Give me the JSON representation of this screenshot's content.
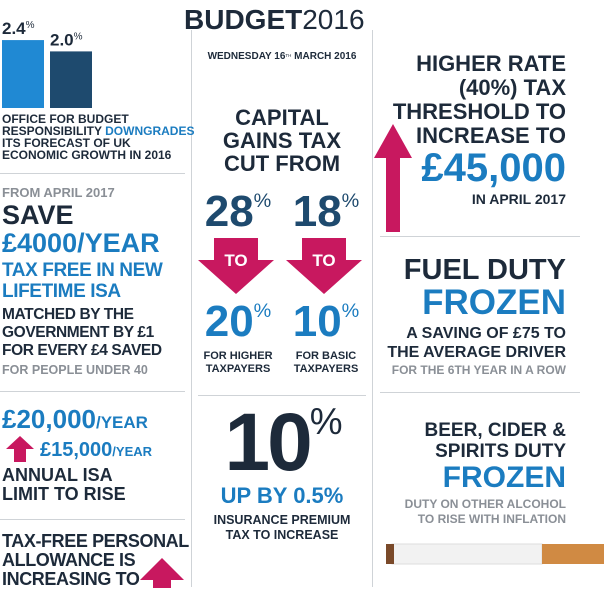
{
  "header": {
    "title": "BUDGET",
    "year": "2016",
    "date_pre": "WEDNESDAY 16",
    "date_sup": "TH",
    "date_post": " MARCH 2016"
  },
  "chart_data": {
    "type": "bar",
    "categories": [
      null,
      null
    ],
    "values": [
      2.4,
      2.0
    ],
    "value_labels": [
      "2.4",
      "2.0"
    ],
    "unit": "%",
    "colors": [
      "#2089d3",
      "#1e4a6e"
    ]
  },
  "growth": {
    "lines": [
      "OFFICE FOR BUDGET",
      "RESPONSIBILITY",
      "ITS FORECAST OF UK",
      "ECONOMIC GROWTH IN 2016"
    ],
    "highlight": "DOWNGRADES"
  },
  "isa_lifetime": {
    "kicker": "FROM APRIL 2017",
    "save": "SAVE",
    "amount": "£4000/YEAR",
    "lines": [
      "TAX FREE IN NEW",
      "LIFETIME ISA"
    ],
    "detail": [
      "MATCHED BY THE",
      "GOVERNMENT BY £1",
      "FOR EVERY £4 SAVED"
    ],
    "note": "FOR PEOPLE UNDER 40"
  },
  "isa_limit": {
    "new_amount": "£20,000",
    "new_unit": "/YEAR",
    "old_amount": "£15,000",
    "old_unit": "/YEAR",
    "lines": [
      "ANNUAL ISA",
      "LIMIT TO RISE"
    ]
  },
  "allowance": {
    "lines": [
      "TAX-FREE PERSONAL",
      "ALLOWANCE IS",
      "INCREASING TO"
    ]
  },
  "cgt": {
    "lines": [
      "CAPITAL",
      "GAINS TAX",
      "CUT FROM"
    ],
    "from_high": "28",
    "from_basic": "18",
    "to_label_high": "TO",
    "to_label_basic": "TO",
    "to_high": "20",
    "to_basic": "10",
    "unit_1": "%",
    "unit_2": "%",
    "unit_3": "%",
    "unit_4": "%",
    "high_label": [
      "FOR HIGHER",
      "TAXPAYERS"
    ],
    "basic_label": [
      "FOR BASIC",
      "TAXPAYERS"
    ]
  },
  "ipt": {
    "big": "10",
    "unit": "%",
    "rise": "UP BY 0.5%",
    "lines": [
      "INSURANCE PREMIUM",
      "TAX TO INCREASE"
    ]
  },
  "threshold": {
    "lines": [
      "HIGHER RATE",
      "(40%) TAX",
      "THRESHOLD TO",
      "INCREASE TO"
    ],
    "amount": "£45,000",
    "when": "IN APRIL 2017"
  },
  "fuel": {
    "title": "FUEL DUTY",
    "frozen": "FROZEN",
    "lines": [
      "A SAVING OF £75 TO",
      "THE AVERAGE DRIVER"
    ],
    "note": "FOR THE 6TH YEAR IN A ROW"
  },
  "alcohol": {
    "lines": [
      "BEER, CIDER &",
      "SPIRITS DUTY"
    ],
    "frozen": "FROZEN",
    "note": [
      "DUTY ON OTHER ALCOHOL",
      "TO RISE WITH INFLATION"
    ]
  }
}
